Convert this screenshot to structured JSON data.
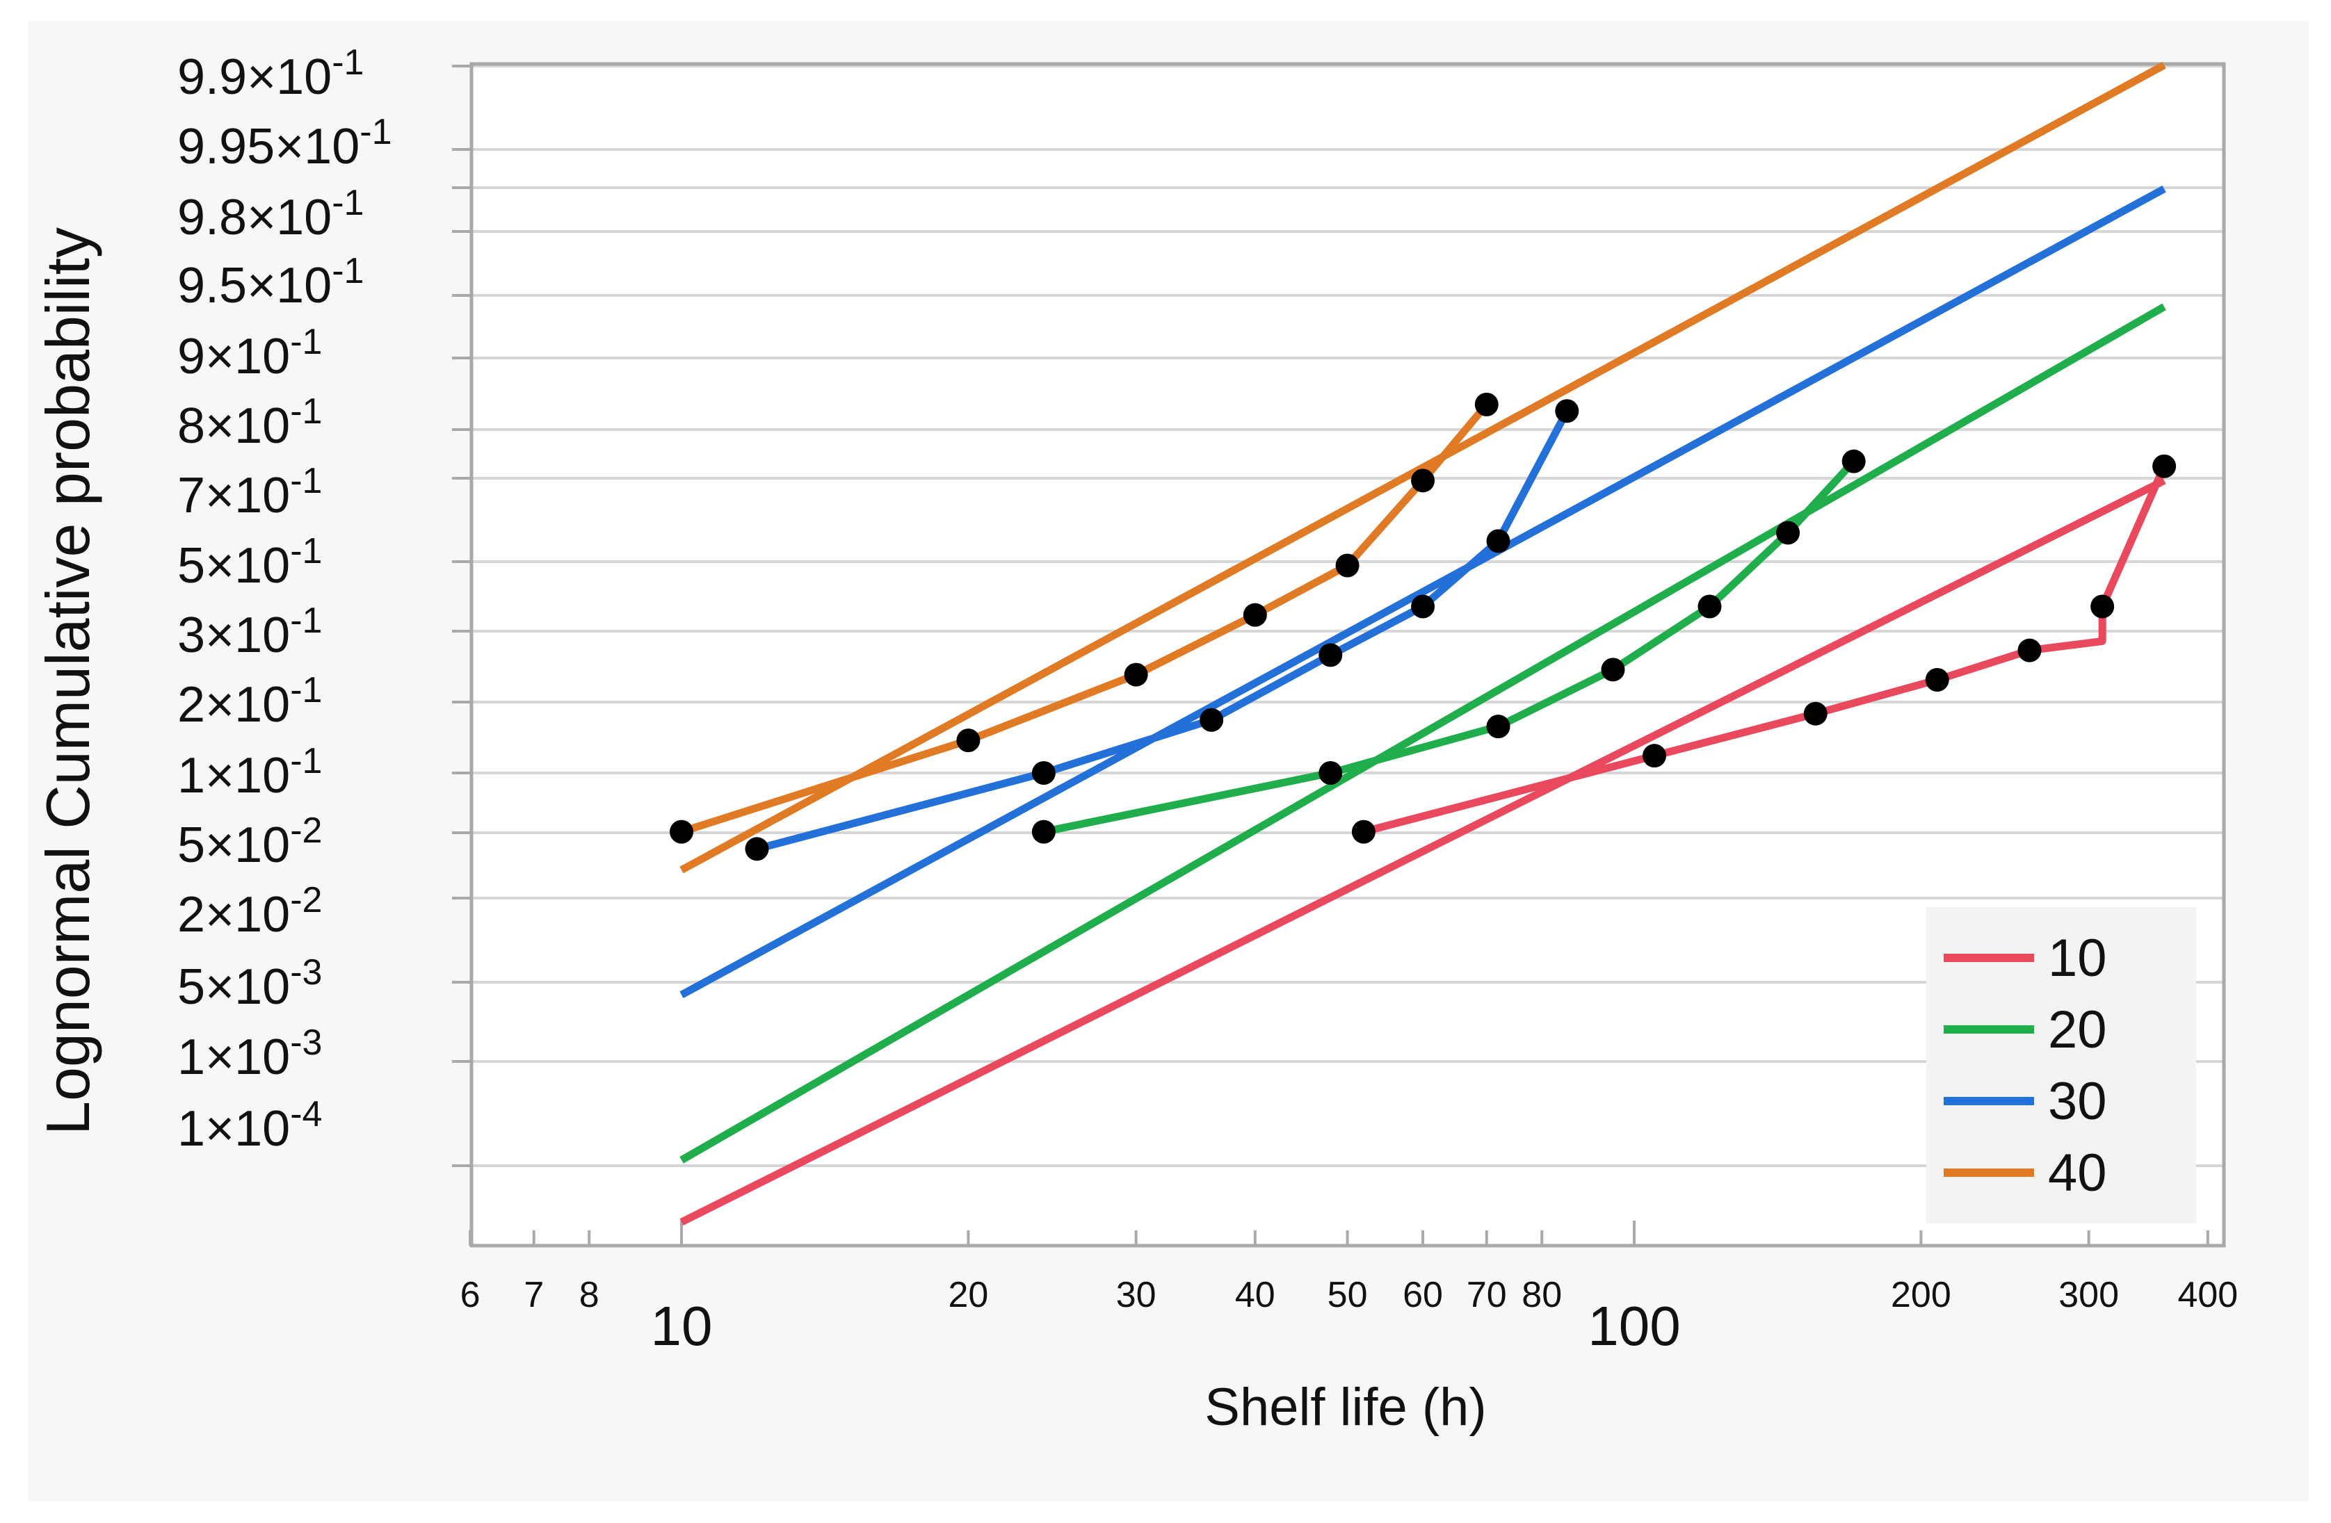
{
  "chart_data": {
    "type": "line",
    "title": "",
    "xlabel": "Shelf life (h)",
    "ylabel": "Lognormal Cumulative probability",
    "xscale": "log",
    "yscale": "lognormal probability",
    "xlim": [
      5.9,
      420
    ],
    "x_ticks": [
      {
        "value": 6,
        "label": "6",
        "major": false
      },
      {
        "value": 7,
        "label": "7",
        "major": false
      },
      {
        "value": 8,
        "label": "8",
        "major": false
      },
      {
        "value": 10,
        "label": "10",
        "major": true
      },
      {
        "value": 20,
        "label": "20",
        "major": false
      },
      {
        "value": 30,
        "label": "30",
        "major": false
      },
      {
        "value": 40,
        "label": "40",
        "major": false
      },
      {
        "value": 50,
        "label": "50",
        "major": false
      },
      {
        "value": 60,
        "label": "60",
        "major": false
      },
      {
        "value": 70,
        "label": "70",
        "major": false
      },
      {
        "value": 80,
        "label": "80",
        "major": false
      },
      {
        "value": 100,
        "label": "100",
        "major": true
      },
      {
        "value": 200,
        "label": "200",
        "major": false
      },
      {
        "value": 300,
        "label": "300",
        "major": false
      },
      {
        "value": 400,
        "label": "400",
        "major": false
      }
    ],
    "y_ticks": [
      {
        "mantissa": "9.9",
        "exp": "-1"
      },
      {
        "mantissa": "9.95",
        "exp": "-1"
      },
      {
        "mantissa": "9.8",
        "exp": "-1"
      },
      {
        "mantissa": "9.5",
        "exp": "-1"
      },
      {
        "mantissa": "9",
        "exp": "-1"
      },
      {
        "mantissa": "8",
        "exp": "-1"
      },
      {
        "mantissa": "7",
        "exp": "-1"
      },
      {
        "mantissa": "5",
        "exp": "-1"
      },
      {
        "mantissa": "3",
        "exp": "-1"
      },
      {
        "mantissa": "2",
        "exp": "-1"
      },
      {
        "mantissa": "1",
        "exp": "-1"
      },
      {
        "mantissa": "5",
        "exp": "-2"
      },
      {
        "mantissa": "2",
        "exp": "-2"
      },
      {
        "mantissa": "5",
        "exp": "-3"
      },
      {
        "mantissa": "1",
        "exp": "-3"
      },
      {
        "mantissa": "1",
        "exp": "-4"
      }
    ],
    "series": [
      {
        "name": "10",
        "color": "#e8495c",
        "fit_line": [
          [
            10,
            2.5e-05
          ],
          [
            360,
            0.7
          ]
        ],
        "points": [
          [
            52,
            0.05
          ],
          [
            105,
            0.12
          ],
          [
            155,
            0.18
          ],
          [
            208,
            0.24
          ],
          [
            260,
            0.3
          ],
          [
            310,
            0.32
          ],
          [
            310,
            0.4
          ],
          [
            360,
            0.73
          ]
        ]
      },
      {
        "name": "20",
        "color": "#1fae4b",
        "fit_line": [
          [
            10,
            0.00012
          ],
          [
            360,
            0.945
          ]
        ],
        "points": [
          [
            24,
            0.05
          ],
          [
            48,
            0.1
          ],
          [
            72,
            0.16
          ],
          [
            95,
            0.26
          ],
          [
            120,
            0.4
          ],
          [
            145,
            0.58
          ],
          [
            170,
            0.74
          ]
        ]
      },
      {
        "name": "30",
        "color": "#2370d8",
        "fit_line": [
          [
            10,
            0.004
          ],
          [
            360,
            0.99
          ]
        ],
        "points": [
          [
            12,
            0.04
          ],
          [
            24,
            0.1
          ],
          [
            36,
            0.17
          ],
          [
            48,
            0.29
          ],
          [
            60,
            0.4
          ],
          [
            72,
            0.56
          ],
          [
            85,
            0.83
          ]
        ]
      },
      {
        "name": "40",
        "color": "#e07a25",
        "fit_line": [
          [
            10,
            0.03
          ],
          [
            360,
            0.999
          ]
        ],
        "points": [
          [
            10,
            0.05
          ],
          [
            20,
            0.14
          ],
          [
            30,
            0.25
          ],
          [
            40,
            0.38
          ],
          [
            50,
            0.5
          ],
          [
            60,
            0.7
          ],
          [
            70,
            0.84
          ]
        ]
      }
    ],
    "marker_color": "#000000",
    "legend": {
      "position": "bottom-right",
      "entries": [
        "10",
        "20",
        "30",
        "40"
      ]
    }
  }
}
